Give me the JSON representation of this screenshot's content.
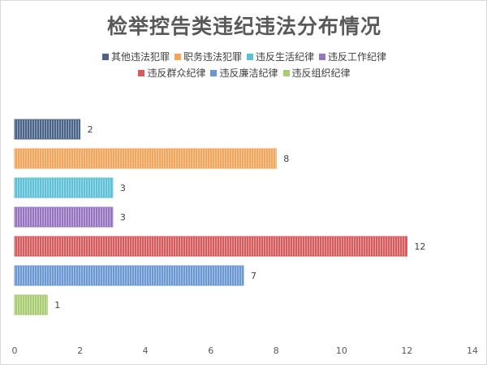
{
  "chart_data": {
    "type": "bar",
    "orientation": "horizontal",
    "title": "检举控告类违纪违法分布情况",
    "categories": [
      "其他违法犯罪",
      "职务违法犯罪",
      "违反生活纪律",
      "违反工作纪律",
      "违反群众纪律",
      "违反廉洁纪律",
      "违反组织纪律"
    ],
    "values": [
      2,
      8,
      3,
      3,
      12,
      7,
      1
    ],
    "colors": [
      "#4a6489",
      "#f5a55a",
      "#5cc0d6",
      "#9575c2",
      "#d65b5c",
      "#6a98d3",
      "#a8cc70"
    ],
    "xlim": [
      0,
      14
    ],
    "xticks": [
      0,
      2,
      4,
      6,
      8,
      10,
      12,
      14
    ],
    "grid": false,
    "legend_position": "top",
    "bar_pattern": "vertical-stripes"
  }
}
